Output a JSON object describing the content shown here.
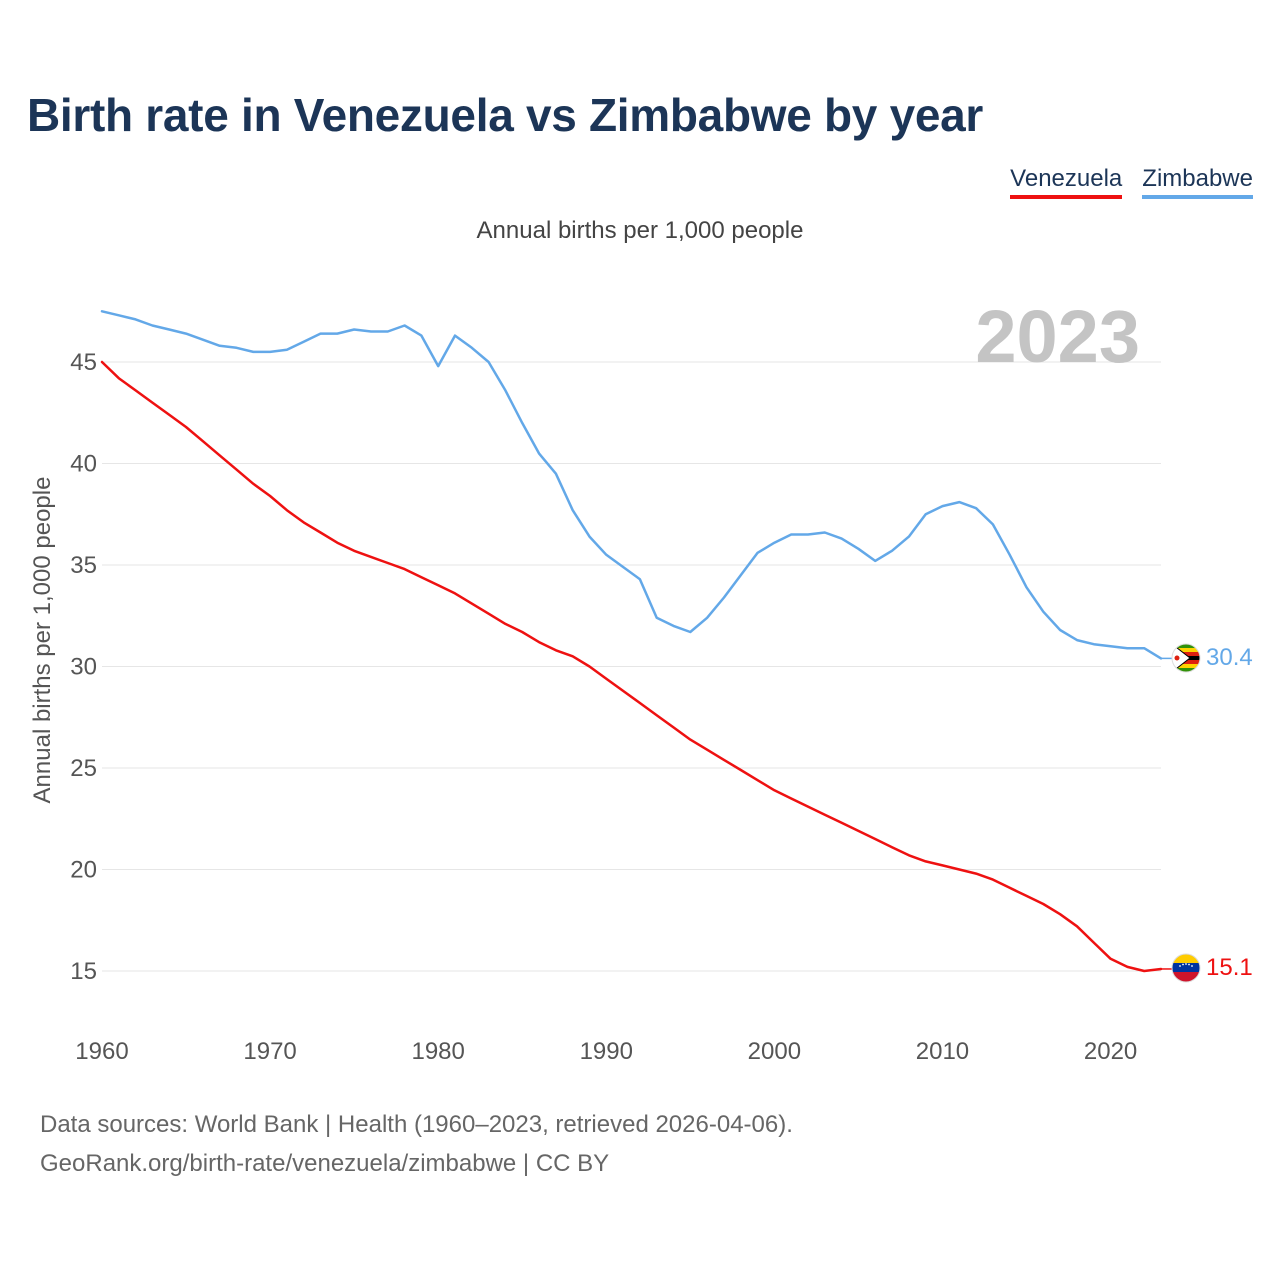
{
  "title": "Birth rate in Venezuela vs Zimbabwe by year",
  "subtitle": "Annual births per 1,000 people",
  "legend": [
    {
      "label": "Venezuela",
      "color": "#ee1111"
    },
    {
      "label": "Zimbabwe",
      "color": "#63a8e8"
    }
  ],
  "year_watermark": "2023",
  "source_lines": [
    "Data sources: World Bank | Health (1960–2023, retrieved 2026-04-06).",
    "GeoRank.org/birth-rate/venezuela/zimbabwe | CC BY"
  ],
  "chart_data": {
    "type": "line",
    "title": "Birth rate in Venezuela vs Zimbabwe by year",
    "xlabel": "",
    "ylabel": "Annual births per 1,000 people",
    "xlim": [
      1960,
      2023
    ],
    "ylim": [
      13,
      48
    ],
    "x_ticks": [
      1960,
      1970,
      1980,
      1990,
      2000,
      2010,
      2020
    ],
    "y_ticks": [
      15,
      20,
      25,
      30,
      35,
      40,
      45
    ],
    "grid": true,
    "legend_position": "top-right",
    "x": [
      1960,
      1961,
      1962,
      1963,
      1964,
      1965,
      1966,
      1967,
      1968,
      1969,
      1970,
      1971,
      1972,
      1973,
      1974,
      1975,
      1976,
      1977,
      1978,
      1979,
      1980,
      1981,
      1982,
      1983,
      1984,
      1985,
      1986,
      1987,
      1988,
      1989,
      1990,
      1991,
      1992,
      1993,
      1994,
      1995,
      1996,
      1997,
      1998,
      1999,
      2000,
      2001,
      2002,
      2003,
      2004,
      2005,
      2006,
      2007,
      2008,
      2009,
      2010,
      2011,
      2012,
      2013,
      2014,
      2015,
      2016,
      2017,
      2018,
      2019,
      2020,
      2021,
      2022,
      2023
    ],
    "series": [
      {
        "name": "Venezuela",
        "color": "#ee1111",
        "end_label": "15.1",
        "values": [
          45.0,
          44.2,
          43.6,
          43.0,
          42.4,
          41.8,
          41.1,
          40.4,
          39.7,
          39.0,
          38.4,
          37.7,
          37.1,
          36.6,
          36.1,
          35.7,
          35.4,
          35.1,
          34.8,
          34.4,
          34.0,
          33.6,
          33.1,
          32.6,
          32.1,
          31.7,
          31.2,
          30.8,
          30.5,
          30.0,
          29.4,
          28.8,
          28.2,
          27.6,
          27.0,
          26.4,
          25.9,
          25.4,
          24.9,
          24.4,
          23.9,
          23.5,
          23.1,
          22.7,
          22.3,
          21.9,
          21.5,
          21.1,
          20.7,
          20.4,
          20.2,
          20.0,
          19.8,
          19.5,
          19.1,
          18.7,
          18.3,
          17.8,
          17.2,
          16.4,
          15.6,
          15.2,
          15.0,
          15.1
        ]
      },
      {
        "name": "Zimbabwe",
        "color": "#63a8e8",
        "end_label": "30.4",
        "values": [
          47.5,
          47.3,
          47.1,
          46.8,
          46.6,
          46.4,
          46.1,
          45.8,
          45.7,
          45.5,
          45.5,
          45.6,
          46.0,
          46.4,
          46.4,
          46.6,
          46.5,
          46.5,
          46.8,
          46.3,
          44.8,
          46.3,
          45.7,
          45.0,
          43.6,
          42.0,
          40.5,
          39.5,
          37.7,
          36.4,
          35.5,
          34.9,
          34.3,
          32.4,
          32.0,
          31.7,
          32.4,
          33.4,
          34.5,
          35.6,
          36.1,
          36.5,
          36.5,
          36.6,
          36.3,
          35.8,
          35.2,
          35.7,
          36.4,
          37.5,
          37.9,
          38.1,
          37.8,
          37.0,
          35.5,
          33.9,
          32.7,
          31.8,
          31.3,
          31.1,
          31.0,
          30.9,
          30.9,
          30.4
        ]
      }
    ]
  }
}
